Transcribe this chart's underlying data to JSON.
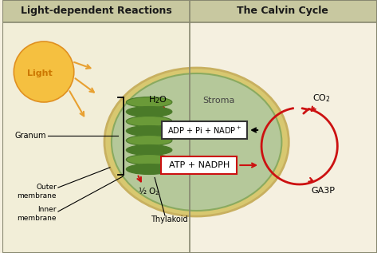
{
  "bg_color": "#f5f0e0",
  "header_bg": "#c8c8a0",
  "title_left": "Light-dependent Reactions",
  "title_right": "The Calvin Cycle",
  "chloroplast_outer_color": "#d4c870",
  "chloroplast_inner_color": "#b5c89a",
  "chloroplast_edge_color": "#8aaa60",
  "stroma_label": "Stroma",
  "sun_color": "#f5c040",
  "light_color": "#e8a030",
  "granum_color_dark": "#4a7a28",
  "granum_color_light": "#6a9a38",
  "arrow_red": "#cc1111",
  "box_adp_border": "#333333",
  "box_atp_border": "#cc1111",
  "left_bg": "#f2eed8",
  "right_bg": "#f5f0e0",
  "divider_color": "#888870",
  "label_color": "#333333",
  "outer_rim_color": "#c8b060",
  "outer_rim_fill": "#d8c870"
}
